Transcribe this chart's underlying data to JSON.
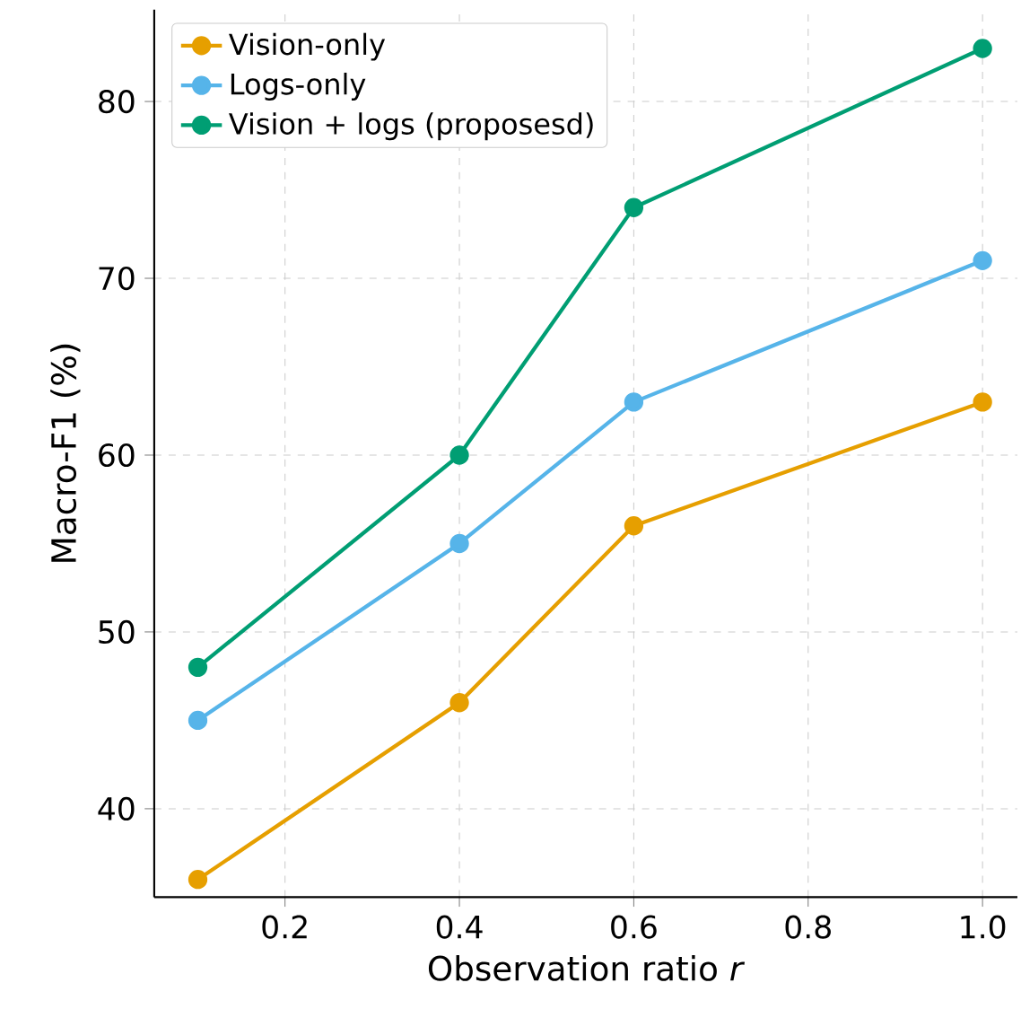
{
  "chart_data": {
    "type": "line",
    "xlabel": "Observation ratio *r*",
    "ylabel": "Macro-F1 (%)",
    "x": [
      0.1,
      0.4,
      0.6,
      1.0
    ],
    "series": [
      {
        "name": "Vision-only",
        "color": "#e69f00",
        "values": [
          36,
          46,
          56,
          63
        ]
      },
      {
        "name": "Logs-only",
        "color": "#56b4e9",
        "values": [
          45,
          55,
          63,
          71
        ]
      },
      {
        "name": "Vision + logs (proposesd)",
        "color": "#009e73",
        "values": [
          48,
          60,
          74,
          83
        ]
      }
    ],
    "xlim": [
      0.05,
      1.04
    ],
    "ylim": [
      35,
      85.2
    ],
    "xticks": [
      0.2,
      0.4,
      0.6,
      0.8,
      {
        "value": 1.0,
        "label": "1.0"
      }
    ],
    "yticks": [
      40,
      50,
      60,
      70,
      80
    ],
    "grid": true,
    "legend": "top left",
    "marker": "circle",
    "line_style": "solid"
  }
}
